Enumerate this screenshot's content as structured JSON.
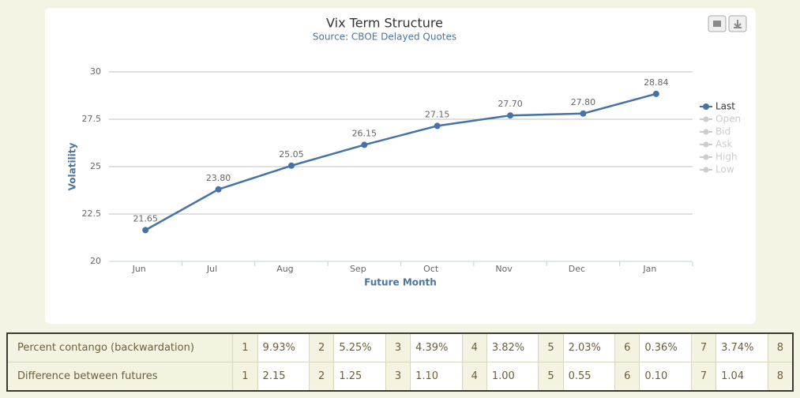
{
  "chart_data": {
    "type": "line",
    "title": "Vix Term Structure",
    "subtitle": "Source: CBOE Delayed Quotes",
    "x_label": "Future Month",
    "y_label": "Volatility",
    "categories": [
      "Jun",
      "Jul",
      "Aug",
      "Sep",
      "Oct",
      "Nov",
      "Dec",
      "Jan"
    ],
    "series": [
      {
        "name": "Last",
        "color": "#4572a7",
        "values": [
          21.65,
          23.8,
          25.05,
          26.15,
          27.15,
          27.7,
          27.8,
          28.84
        ],
        "value_labels": [
          "21.65",
          "23.80",
          "25.05",
          "26.15",
          "27.15",
          "27.70",
          "27.80",
          "28.84"
        ]
      }
    ],
    "hidden_legend": [
      "Open",
      "Bid",
      "Ask",
      "High",
      "Low"
    ],
    "ylim": [
      20,
      30
    ],
    "yticks": [
      20,
      22.5,
      25,
      27.5,
      30
    ],
    "grid": true,
    "legend": "right"
  },
  "table": {
    "rows": [
      [
        "Percent contango (backwardation)",
        "1",
        "9.93%",
        "2",
        "5.25%",
        "3",
        "4.39%",
        "4",
        "3.82%",
        "5",
        "2.03%",
        "6",
        "0.36%",
        "7",
        "3.74%",
        "8"
      ],
      [
        "Difference between futures",
        "1",
        "2.15",
        "2",
        "1.25",
        "3",
        "1.10",
        "4",
        "1.00",
        "5",
        "0.55",
        "6",
        "0.10",
        "7",
        "1.04",
        "8"
      ]
    ]
  }
}
